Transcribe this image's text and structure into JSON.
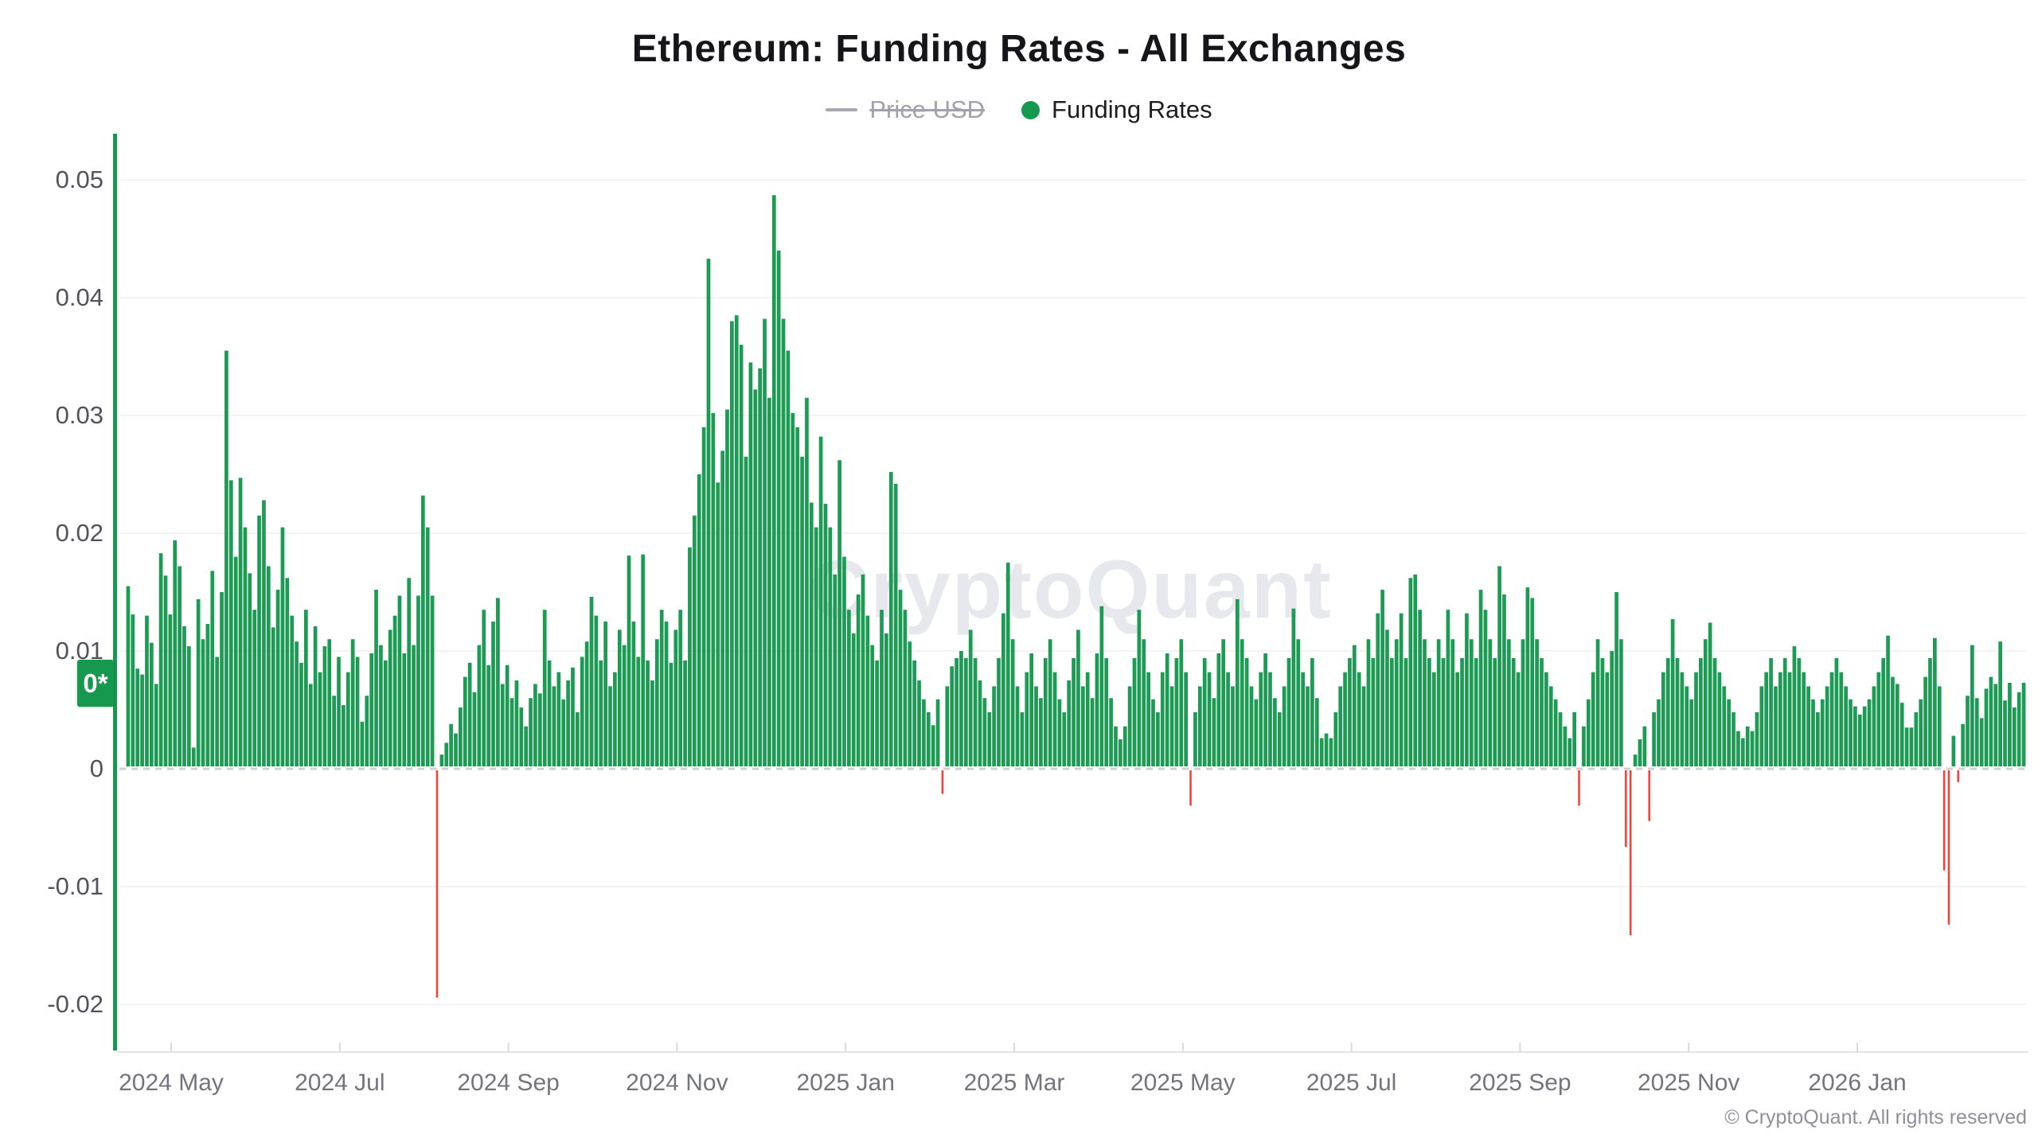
{
  "header": {
    "title": "Ethereum: Funding Rates - All Exchanges",
    "legend": [
      {
        "label": "Price USD",
        "enabled": false,
        "icon": "line-dash-icon",
        "color": "#a7a7b2"
      },
      {
        "label": "Funding Rates",
        "enabled": true,
        "icon": "dot-icon",
        "color": "#17984f"
      }
    ]
  },
  "watermark_text": "CryptoQuant",
  "y_axis_current_badge": "0*",
  "footer_copyright": "© CryptoQuant. All rights reserved",
  "chart_data": {
    "type": "bar",
    "title": "Ethereum: Funding Rates - All Exchanges",
    "series_name": "Funding Rates",
    "hidden_series": "Price USD",
    "x_tick_labels": [
      "2024 May",
      "2024 Jul",
      "2024 Sep",
      "2024 Nov",
      "2025 Jan",
      "2025 Mar",
      "2025 May",
      "2025 Jul",
      "2025 Sep",
      "2025 Nov",
      "2026 Jan"
    ],
    "y_tick_labels": [
      "0.05",
      "0.04",
      "0.03",
      "0.02",
      "0.01",
      "0",
      "-0.01",
      "-0.02"
    ],
    "ylim": [
      -0.0242,
      0.0545
    ],
    "grid": "horizontal",
    "legend_position": "top",
    "bar_colors": {
      "positive": "#1d9b54",
      "negative": "#f4433c"
    },
    "values": [
      0.0155,
      0.0131,
      0.0085,
      0.008,
      0.013,
      0.0107,
      0.0072,
      0.0183,
      0.0164,
      0.0131,
      0.0194,
      0.0172,
      0.0121,
      0.0104,
      0.0018,
      0.0144,
      0.011,
      0.0123,
      0.0168,
      0.0095,
      0.015,
      0.0355,
      0.0245,
      0.018,
      0.0247,
      0.0205,
      0.0166,
      0.0135,
      0.0215,
      0.0228,
      0.0172,
      0.012,
      0.0152,
      0.0205,
      0.0162,
      0.013,
      0.0108,
      0.009,
      0.0135,
      0.0072,
      0.0121,
      0.0082,
      0.0104,
      0.011,
      0.0062,
      0.0095,
      0.0054,
      0.0082,
      0.011,
      0.0095,
      0.004,
      0.0062,
      0.0098,
      0.0152,
      0.0105,
      0.0092,
      0.0118,
      0.013,
      0.0147,
      0.0098,
      0.0162,
      0.0105,
      0.0147,
      0.0232,
      0.0205,
      0.0147,
      -0.0193,
      0.0012,
      0.0022,
      0.0038,
      0.003,
      0.0052,
      0.0078,
      0.009,
      0.0065,
      0.0105,
      0.0135,
      0.0088,
      0.0125,
      0.0145,
      0.0072,
      0.0088,
      0.006,
      0.0075,
      0.0052,
      0.0036,
      0.006,
      0.0072,
      0.0064,
      0.0135,
      0.0092,
      0.007,
      0.0082,
      0.0059,
      0.0075,
      0.0086,
      0.0048,
      0.0095,
      0.0108,
      0.0146,
      0.013,
      0.0092,
      0.0125,
      0.007,
      0.0082,
      0.0118,
      0.0105,
      0.0181,
      0.0125,
      0.0095,
      0.0182,
      0.0092,
      0.0075,
      0.011,
      0.0135,
      0.0125,
      0.009,
      0.0118,
      0.0135,
      0.0092,
      0.0188,
      0.0215,
      0.025,
      0.029,
      0.0433,
      0.0302,
      0.0243,
      0.027,
      0.0305,
      0.038,
      0.0385,
      0.036,
      0.0265,
      0.0345,
      0.0322,
      0.034,
      0.0382,
      0.0315,
      0.0487,
      0.044,
      0.0382,
      0.0355,
      0.0302,
      0.029,
      0.0265,
      0.0315,
      0.0226,
      0.0205,
      0.0282,
      0.0225,
      0.0205,
      0.0165,
      0.0262,
      0.018,
      0.0135,
      0.0115,
      0.0148,
      0.0165,
      0.013,
      0.0105,
      0.0092,
      0.0135,
      0.0115,
      0.0252,
      0.0242,
      0.0152,
      0.0135,
      0.0108,
      0.0092,
      0.0075,
      0.0059,
      0.0048,
      0.0037,
      0.0059,
      -0.002,
      0.007,
      0.0087,
      0.0094,
      0.01,
      0.0094,
      0.0118,
      0.0094,
      0.0075,
      0.006,
      0.0048,
      0.007,
      0.0094,
      0.0132,
      0.0175,
      0.011,
      0.007,
      0.0048,
      0.0082,
      0.0098,
      0.007,
      0.006,
      0.0094,
      0.011,
      0.0082,
      0.0059,
      0.0048,
      0.0075,
      0.0094,
      0.0118,
      0.007,
      0.0082,
      0.006,
      0.0098,
      0.0138,
      0.0094,
      0.006,
      0.0036,
      0.0025,
      0.0036,
      0.007,
      0.0094,
      0.0135,
      0.011,
      0.0082,
      0.0059,
      0.0048,
      0.0082,
      0.0098,
      0.007,
      0.0094,
      0.011,
      0.0082,
      -0.003,
      0.0048,
      0.007,
      0.0094,
      0.0082,
      0.006,
      0.0098,
      0.011,
      0.0082,
      0.007,
      0.0144,
      0.011,
      0.0094,
      0.007,
      0.0059,
      0.0082,
      0.0098,
      0.0082,
      0.006,
      0.0048,
      0.007,
      0.0094,
      0.0136,
      0.011,
      0.0082,
      0.007,
      0.0094,
      0.006,
      0.0026,
      0.003,
      0.0026,
      0.0048,
      0.007,
      0.0082,
      0.0094,
      0.0105,
      0.0082,
      0.007,
      0.011,
      0.0094,
      0.0132,
      0.0152,
      0.0118,
      0.0094,
      0.011,
      0.0132,
      0.0094,
      0.0162,
      0.0165,
      0.0135,
      0.011,
      0.0094,
      0.0082,
      0.011,
      0.0094,
      0.0135,
      0.011,
      0.0082,
      0.0094,
      0.0132,
      0.011,
      0.0094,
      0.0152,
      0.0135,
      0.011,
      0.0094,
      0.0172,
      0.0148,
      0.011,
      0.0094,
      0.0082,
      0.011,
      0.0154,
      0.0145,
      0.011,
      0.0094,
      0.0082,
      0.007,
      0.0059,
      0.0048,
      0.0036,
      0.0026,
      0.0048,
      -0.003,
      0.0036,
      0.0059,
      0.0082,
      0.011,
      0.0094,
      0.0082,
      0.01,
      0.015,
      0.011,
      -0.0065,
      -0.014,
      0.0012,
      0.0025,
      0.0036,
      -0.0043,
      0.0048,
      0.0059,
      0.0082,
      0.0094,
      0.0127,
      0.0094,
      0.0082,
      0.007,
      0.0059,
      0.0082,
      0.0094,
      0.011,
      0.0124,
      0.0094,
      0.0082,
      0.007,
      0.0059,
      0.0048,
      0.0032,
      0.0026,
      0.0036,
      0.0032,
      0.0048,
      0.007,
      0.0082,
      0.0094,
      0.007,
      0.0082,
      0.0094,
      0.0082,
      0.0104,
      0.0094,
      0.0082,
      0.007,
      0.0059,
      0.0048,
      0.0059,
      0.007,
      0.0082,
      0.0094,
      0.0082,
      0.007,
      0.0059,
      0.0053,
      0.0046,
      0.0053,
      0.0059,
      0.007,
      0.0082,
      0.0094,
      0.0113,
      0.0078,
      0.0072,
      0.0056,
      0.0035,
      0.0035,
      0.0048,
      0.0059,
      0.0078,
      0.0094,
      0.0111,
      0.007,
      -0.0085,
      -0.0131,
      0.0028,
      -0.001,
      0.0038,
      0.0062,
      0.0105,
      0.006,
      0.0043,
      0.0068,
      0.0078,
      0.0072,
      0.0108,
      0.0058,
      0.0073,
      0.0052,
      0.0065,
      0.0073
    ]
  }
}
